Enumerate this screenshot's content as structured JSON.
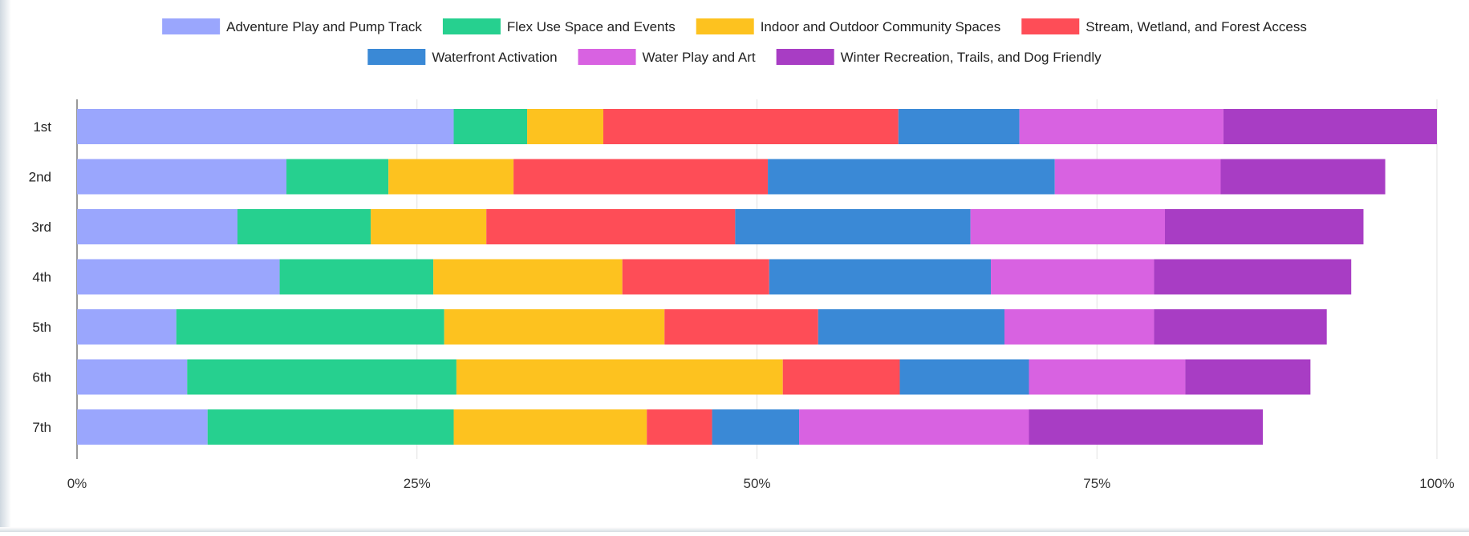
{
  "chart_data": {
    "type": "bar",
    "orientation": "horizontal",
    "stacked": true,
    "categories": [
      "1st",
      "2nd",
      "3rd",
      "4th",
      "5th",
      "6th",
      "7th"
    ],
    "x_ticks": [
      "0%",
      "25%",
      "50%",
      "75%",
      "100%"
    ],
    "xlim": [
      0,
      100
    ],
    "grid": true,
    "legend_position": "top",
    "series": [
      {
        "name": "Adventure Play and Pump Track",
        "color": "#9aa6fd",
        "values": [
          27.7,
          15.4,
          11.8,
          14.9,
          7.3,
          8.1,
          9.6
        ]
      },
      {
        "name": "Flex Use Space and Events",
        "color": "#26d08f",
        "values": [
          5.4,
          7.5,
          9.8,
          11.3,
          19.7,
          19.8,
          18.1
        ]
      },
      {
        "name": "Indoor and Outdoor Community Spaces",
        "color": "#fdc21f",
        "values": [
          5.6,
          9.2,
          8.5,
          13.9,
          16.2,
          24.0,
          14.2
        ]
      },
      {
        "name": "Stream, Wetland, and Forest Access",
        "color": "#fe4d57",
        "values": [
          21.7,
          18.7,
          18.3,
          10.8,
          11.3,
          8.6,
          4.8
        ]
      },
      {
        "name": "Waterfront Activation",
        "color": "#3a89d6",
        "values": [
          8.9,
          21.1,
          17.3,
          16.3,
          13.7,
          9.5,
          6.4
        ]
      },
      {
        "name": "Water Play and Art",
        "color": "#d862e1",
        "values": [
          15.0,
          12.2,
          14.3,
          12.0,
          11.0,
          11.5,
          16.9
        ]
      },
      {
        "name": "Winter Recreation, Trails, and Dog Friendly",
        "color": "#a83dc4",
        "values": [
          15.7,
          12.1,
          14.6,
          14.5,
          12.7,
          9.2,
          17.2
        ]
      }
    ]
  }
}
